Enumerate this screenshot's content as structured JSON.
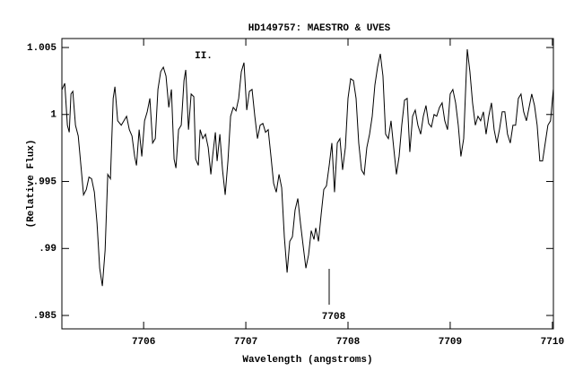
{
  "chart_data": {
    "type": "line",
    "title": "HD149757: MAESTRO & UVES",
    "x_label": "Wavelength (angstroms)",
    "y_label": "(Relative Flux)",
    "annotations": [
      "II.",
      "7708"
    ],
    "color": "#000000",
    "grid": false,
    "xlim": [
      7705.2,
      7710.01
    ],
    "xticks": [
      7706,
      7707,
      7708,
      7709,
      7710
    ],
    "ylim": [
      0.984,
      1.00567
    ],
    "yticks": [
      1.005,
      1,
      {
        "value": 0.995,
        "label": ".995"
      },
      {
        "value": 0.99,
        "label": ".99"
      },
      {
        "value": 0.985,
        "label": ".985"
      }
    ],
    "x": [
      7705.202,
      7705.228,
      7705.254,
      7705.272,
      7705.289,
      7705.307,
      7705.333,
      7705.36,
      7705.386,
      7705.412,
      7705.439,
      7705.465,
      7705.491,
      7705.518,
      7705.544,
      7705.57,
      7705.596,
      7705.623,
      7705.649,
      7705.675,
      7705.702,
      7705.719,
      7705.746,
      7705.781,
      7705.807,
      7705.833,
      7705.86,
      7705.886,
      7705.912,
      7705.93,
      7705.956,
      7705.982,
      7706.009,
      7706.035,
      7706.061,
      7706.088,
      7706.114,
      7706.14,
      7706.167,
      7706.193,
      7706.219,
      7706.246,
      7706.272,
      7706.298,
      7706.316,
      7706.342,
      7706.368,
      7706.395,
      7706.412,
      7706.439,
      7706.465,
      7706.491,
      7706.509,
      7706.535,
      7706.553,
      7706.579,
      7706.605,
      7706.632,
      7706.658,
      7706.675,
      7706.702,
      7706.719,
      7706.746,
      7706.772,
      7706.798,
      7706.825,
      7706.851,
      7706.877,
      7706.904,
      7706.93,
      7706.956,
      7706.982,
      7707.009,
      7707.035,
      7707.061,
      7707.088,
      7707.114,
      7707.14,
      7707.167,
      7707.193,
      7707.219,
      7707.246,
      7707.272,
      7707.298,
      7707.325,
      7707.351,
      7707.377,
      7707.404,
      7707.43,
      7707.456,
      7707.482,
      7707.509,
      7707.535,
      7707.561,
      7707.588,
      7707.614,
      7707.64,
      7707.667,
      7707.684,
      7707.711,
      7707.737,
      7707.763,
      7707.789,
      7707.816,
      7707.842,
      7707.868,
      7707.895,
      7707.921,
      7707.947,
      7707.974,
      7708.0,
      7708.026,
      7708.053,
      7708.079,
      7708.105,
      7708.132,
      7708.158,
      7708.184,
      7708.211,
      7708.237,
      7708.263,
      7708.289,
      7708.316,
      7708.342,
      7708.368,
      7708.395,
      7708.421,
      7708.447,
      7708.474,
      7708.5,
      7708.526,
      7708.553,
      7708.579,
      7708.605,
      7708.632,
      7708.658,
      7708.684,
      7708.711,
      7708.737,
      7708.763,
      7708.789,
      7708.816,
      7708.842,
      7708.868,
      7708.895,
      7708.921,
      7708.947,
      7708.974,
      7709.0,
      7709.026,
      7709.053,
      7709.079,
      7709.105,
      7709.132,
      7709.158,
      7709.167,
      7709.193,
      7709.219,
      7709.246,
      7709.272,
      7709.298,
      7709.325,
      7709.351,
      7709.377,
      7709.404,
      7709.43,
      7709.456,
      7709.482,
      7709.509,
      7709.535,
      7709.561,
      7709.588,
      7709.614,
      7709.64,
      7709.667,
      7709.693,
      7709.719,
      7709.746,
      7709.772,
      7709.798,
      7709.825,
      7709.851,
      7709.877,
      7709.904,
      7709.93,
      7709.956,
      7709.982,
      7710.009
    ],
    "values": [
      1.00187,
      1.00233,
      0.9992,
      0.99867,
      1.00153,
      1.00173,
      0.9992,
      0.9984,
      0.9962,
      0.994,
      0.9944,
      0.99533,
      0.9952,
      0.9942,
      0.99187,
      0.98853,
      0.9872,
      0.98987,
      0.99553,
      0.9952,
      1.0012,
      1.00207,
      0.99953,
      0.9992,
      0.99953,
      0.99987,
      0.99887,
      0.9984,
      0.99687,
      0.9962,
      0.99887,
      0.99687,
      0.99953,
      1.0002,
      1.0012,
      0.99787,
      0.9982,
      1.00187,
      1.0032,
      1.00353,
      1.00287,
      1.00053,
      1.00187,
      0.99667,
      0.996,
      0.99887,
      0.9992,
      1.00253,
      1.00333,
      0.99887,
      1.00153,
      1.00133,
      0.99667,
      0.9962,
      0.99887,
      0.9982,
      0.99853,
      0.99753,
      0.99553,
      0.99687,
      0.99867,
      0.99653,
      0.99853,
      0.99587,
      0.994,
      0.99653,
      0.99987,
      1.00053,
      1.00027,
      1.0012,
      1.0032,
      1.00387,
      1.00033,
      1.00173,
      1.00187,
      0.99987,
      0.9982,
      0.9992,
      0.99933,
      0.99867,
      0.99887,
      0.99687,
      0.99487,
      0.9942,
      0.99553,
      0.99453,
      0.99087,
      0.9882,
      0.99053,
      0.99087,
      0.99287,
      0.99373,
      0.99187,
      0.9902,
      0.98853,
      0.98953,
      0.99133,
      0.99067,
      0.99153,
      0.99053,
      0.99253,
      0.9944,
      0.99467,
      0.9962,
      0.99787,
      0.9942,
      0.99787,
      0.9982,
      0.99587,
      0.99753,
      1.0012,
      1.00267,
      1.00253,
      1.0012,
      0.99787,
      0.99587,
      0.99553,
      0.99753,
      0.99853,
      0.99987,
      1.0022,
      1.00353,
      1.00453,
      1.00287,
      0.99853,
      0.9982,
      0.99953,
      0.99753,
      0.99553,
      0.99687,
      0.9992,
      1.00107,
      1.0012,
      0.9972,
      0.99987,
      1.00033,
      0.9992,
      0.99853,
      0.99987,
      1.00067,
      0.99933,
      0.99907,
      1.0,
      0.99987,
      1.00053,
      1.00087,
      0.99953,
      0.99887,
      1.00153,
      1.00187,
      1.00087,
      0.9992,
      0.99687,
      0.9982,
      1.0032,
      1.00487,
      1.0032,
      1.00087,
      0.9992,
      0.99987,
      0.99953,
      1.0002,
      0.99853,
      0.99987,
      1.00087,
      0.99887,
      0.99787,
      0.99887,
      1.0002,
      1.0002,
      0.99853,
      0.99787,
      0.9992,
      0.9992,
      1.0012,
      1.00153,
      1.0002,
      0.99953,
      1.00053,
      1.00153,
      1.00067,
      0.9992,
      0.99653,
      0.99653,
      0.99787,
      0.9992,
      0.99953,
      1.00187
    ]
  }
}
